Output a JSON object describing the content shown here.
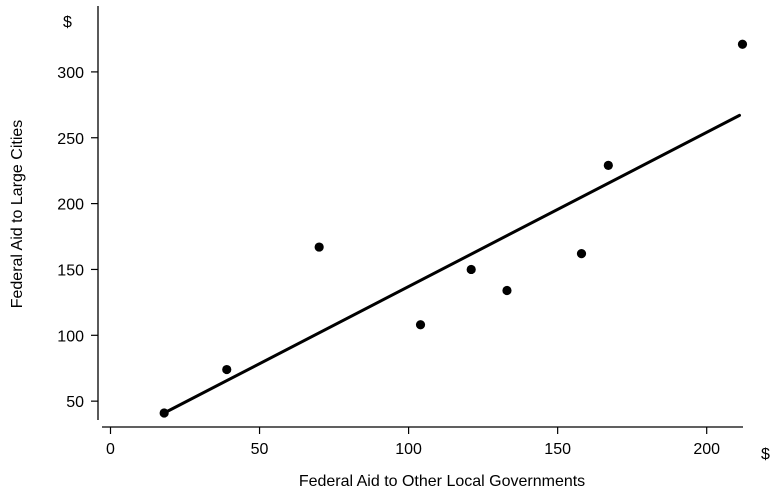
{
  "chart_data": {
    "type": "scatter",
    "title": "",
    "xlabel": "Federal Aid to Other Local Governments",
    "ylabel": "Federal Aid to Large Cities",
    "x_unit": "$",
    "y_unit": "$",
    "xlim": [
      -5,
      220
    ],
    "ylim": [
      30,
      345
    ],
    "x_ticks": [
      0,
      50,
      100,
      150,
      200
    ],
    "y_ticks": [
      50,
      100,
      150,
      200,
      250,
      300
    ],
    "grid": false,
    "points": [
      {
        "x": 18,
        "y": 41
      },
      {
        "x": 39,
        "y": 74
      },
      {
        "x": 70,
        "y": 167
      },
      {
        "x": 104,
        "y": 108
      },
      {
        "x": 121,
        "y": 150
      },
      {
        "x": 133,
        "y": 134
      },
      {
        "x": 158,
        "y": 162
      },
      {
        "x": 167,
        "y": 229
      },
      {
        "x": 212,
        "y": 321
      }
    ],
    "fit_line": {
      "x": [
        18,
        211
      ],
      "y": [
        41,
        267
      ]
    }
  }
}
